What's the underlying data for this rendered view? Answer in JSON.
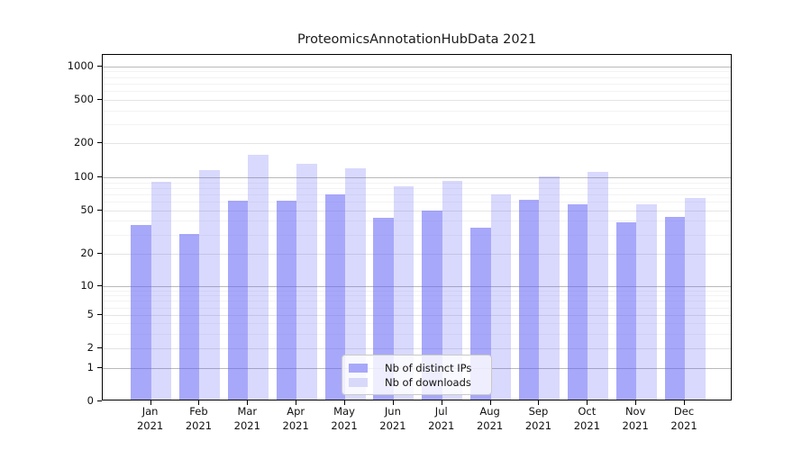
{
  "chart_data": {
    "type": "bar",
    "title": "ProteomicsAnnotationHubData 2021",
    "categories": [
      "Jan",
      "Feb",
      "Mar",
      "Apr",
      "May",
      "Jun",
      "Jul",
      "Aug",
      "Sep",
      "Oct",
      "Nov",
      "Dec"
    ],
    "category_year": "2021",
    "series": [
      {
        "name": "Nb of distinct IPs",
        "color": "rgba(95,95,245,0.54)",
        "legend_color": "#a8a8fa",
        "values": [
          36,
          30,
          60,
          60,
          68,
          42,
          49,
          34,
          61,
          56,
          38,
          43
        ]
      },
      {
        "name": "Nb of downloads",
        "color": "rgba(95,95,245,0.24)",
        "legend_color": "#d8d8fa",
        "values": [
          90,
          114,
          156,
          129,
          117,
          82,
          91,
          68,
          100,
          110,
          56,
          63
        ]
      }
    ],
    "yticks": [
      0,
      1,
      2,
      5,
      10,
      20,
      50,
      100,
      200,
      500,
      1000
    ],
    "yscale": "symlog",
    "ylim": [
      0,
      1400
    ],
    "xlabel": "",
    "ylabel": "",
    "grid": true,
    "legend_position": "lower center",
    "accent_color": "#5f5ff5"
  }
}
